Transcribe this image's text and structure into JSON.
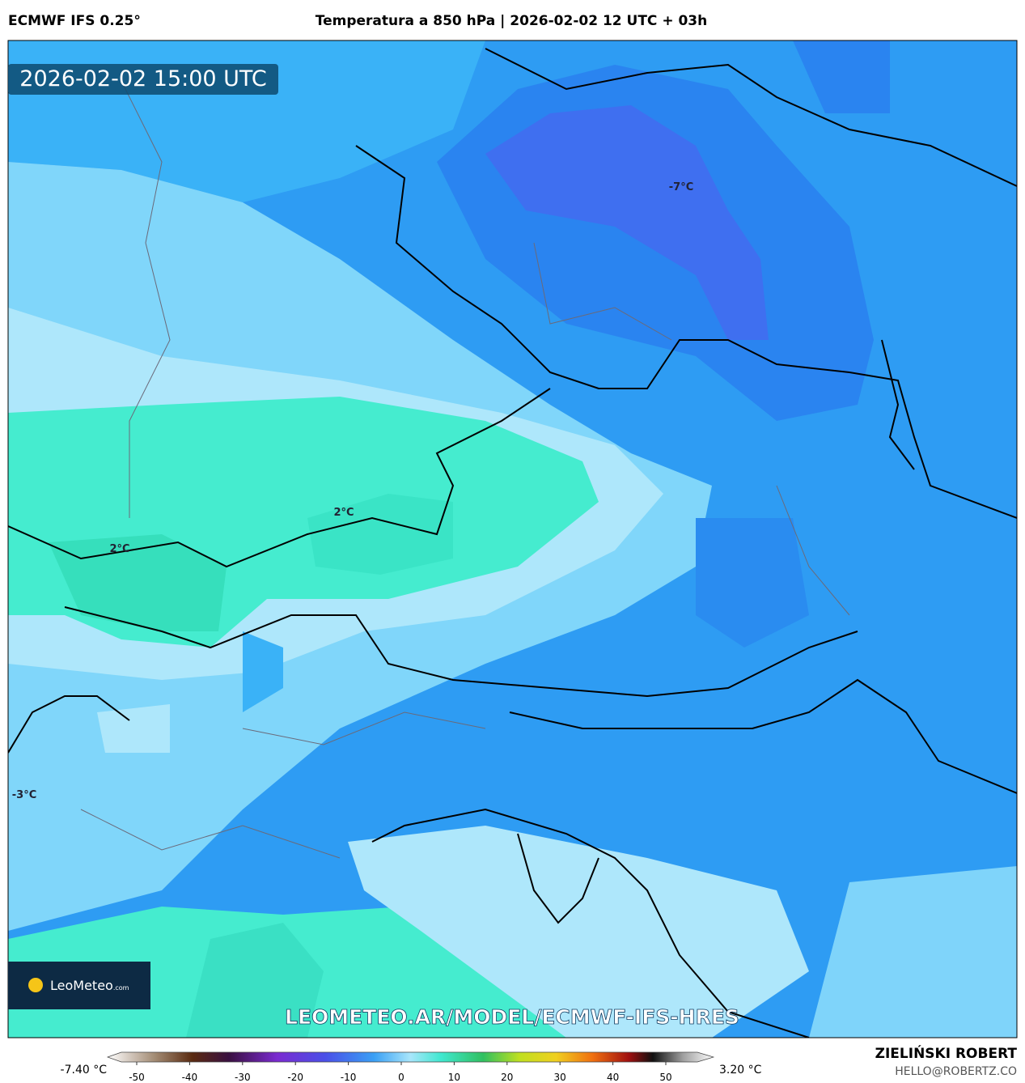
{
  "header": {
    "model": "ECMWF IFS 0.25°",
    "title": "Temperatura a 850 hPa | 2026-02-02 12 UTC + 03h"
  },
  "map": {
    "timestamp": "2026-02-02 15:00 UTC",
    "labels": [
      "-7°C",
      "2°C",
      "2°C",
      "-3°C"
    ],
    "watermark": "LEOMETEO.AR/MODEL/ECMWF-IFS-HRES",
    "logo": {
      "name": "LeoMeteo",
      "suffix": ".com"
    }
  },
  "colorbar": {
    "min_label": "-7.40 °C",
    "max_label": "3.20 °C",
    "ticks": [
      -50,
      -40,
      -30,
      -20,
      -10,
      0,
      10,
      20,
      30,
      40,
      50
    ]
  },
  "footer": {
    "author": "ZIELIŃSKI ROBERT",
    "contact": "HELLO@ROBERTZ.CO"
  }
}
